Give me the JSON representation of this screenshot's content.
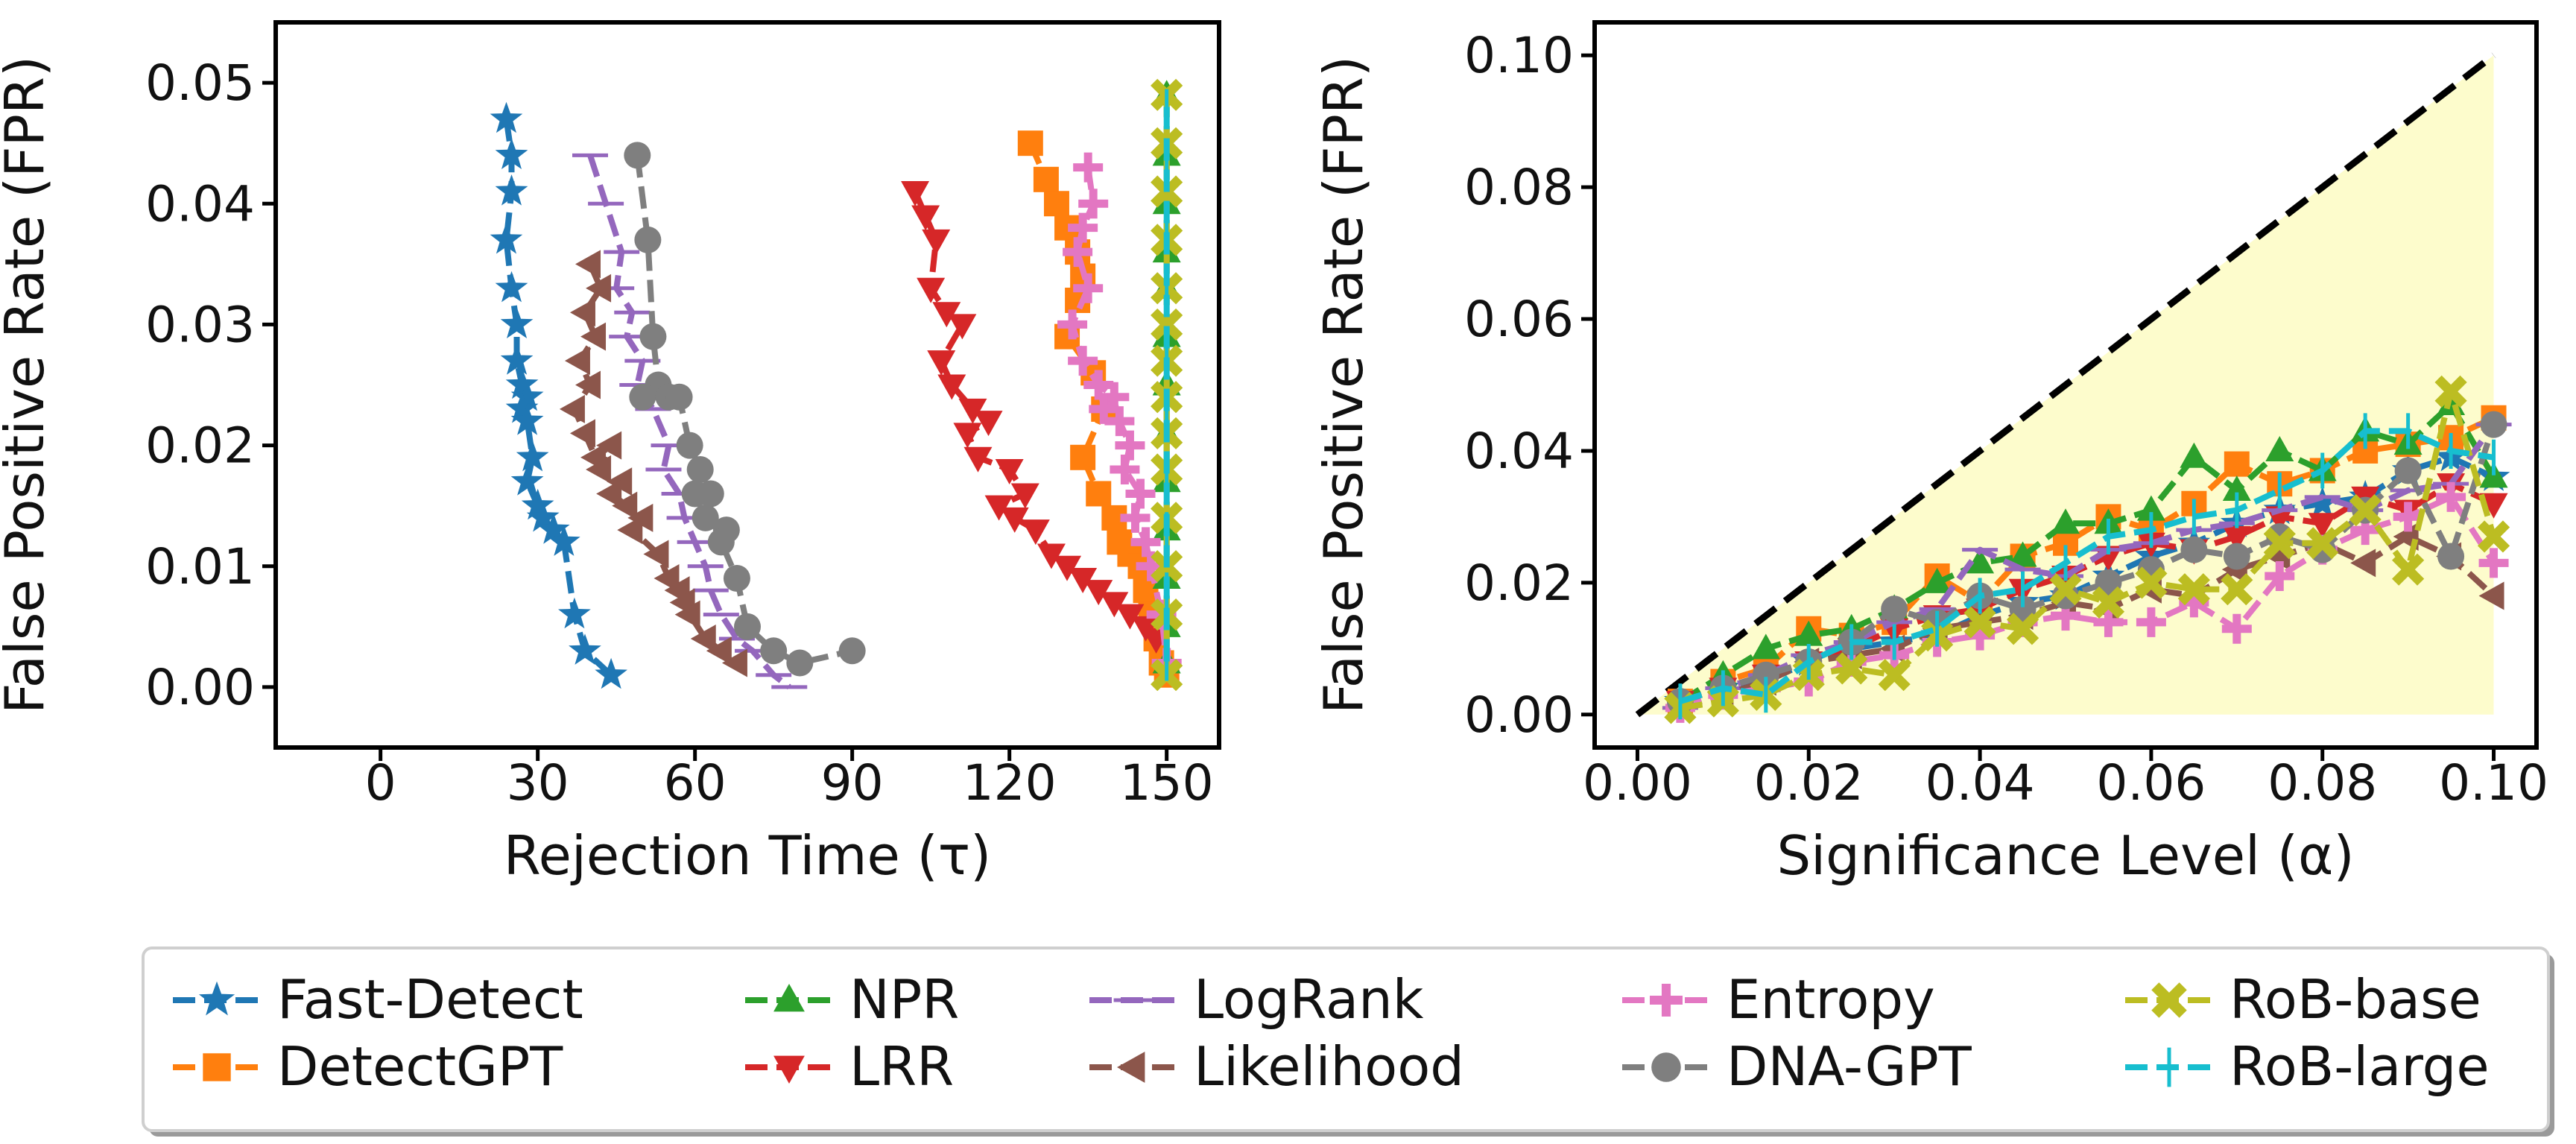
{
  "colors": {
    "Fast-Detect": "#1f77b4",
    "DetectGPT": "#ff7f0e",
    "NPR": "#2ca02c",
    "LRR": "#d62728",
    "LogRank": "#9467bd",
    "Likelihood": "#8c564b",
    "Entropy": "#e377c2",
    "DNA-GPT": "#7f7f7f",
    "RoB-base": "#bcbd22",
    "RoB-large": "#17becf",
    "region": "#fdfccc",
    "diagonal": "#000000"
  },
  "legend": {
    "entries": [
      {
        "name": "Fast-Detect",
        "marker": "star"
      },
      {
        "name": "DetectGPT",
        "marker": "square"
      },
      {
        "name": "NPR",
        "marker": "triangle-up"
      },
      {
        "name": "LRR",
        "marker": "triangle-down"
      },
      {
        "name": "LogRank",
        "marker": "hline"
      },
      {
        "name": "Likelihood",
        "marker": "triangle-left"
      },
      {
        "name": "Entropy",
        "marker": "plus"
      },
      {
        "name": "DNA-GPT",
        "marker": "circle"
      },
      {
        "name": "RoB-base",
        "marker": "x"
      },
      {
        "name": "RoB-large",
        "marker": "vline"
      }
    ]
  },
  "chart_data": [
    {
      "type": "line",
      "xlabel": "Rejection Time (τ)",
      "ylabel": "False Positive Rate (FPR)",
      "xlim": [
        -20,
        160
      ],
      "ylim": [
        -0.005,
        0.055
      ],
      "xticks": [
        0,
        30,
        60,
        90,
        120,
        150
      ],
      "xtick_labels": [
        "0",
        "30",
        "60",
        "90",
        "120",
        "150"
      ],
      "yticks": [
        0.0,
        0.01,
        0.02,
        0.03,
        0.04,
        0.05
      ],
      "ytick_labels": [
        "0.00",
        "0.01",
        "0.02",
        "0.03",
        "0.04",
        "0.05"
      ],
      "series": [
        {
          "name": "Fast-Detect",
          "x": [
            24,
            25,
            25,
            24,
            25,
            26,
            26,
            27,
            28,
            27,
            28,
            29,
            28,
            30,
            31,
            33,
            35,
            37,
            39,
            44
          ],
          "y": [
            0.047,
            0.044,
            0.041,
            0.037,
            0.033,
            0.03,
            0.027,
            0.025,
            0.024,
            0.023,
            0.022,
            0.019,
            0.017,
            0.015,
            0.014,
            0.013,
            0.012,
            0.006,
            0.003,
            0.001
          ]
        },
        {
          "name": "DetectGPT",
          "x": [
            124,
            127,
            129,
            131,
            133,
            134,
            133,
            131,
            136,
            138,
            134,
            137,
            140,
            141,
            143,
            145,
            146,
            147,
            148,
            149,
            150
          ],
          "y": [
            0.045,
            0.042,
            0.04,
            0.038,
            0.036,
            0.034,
            0.032,
            0.029,
            0.026,
            0.023,
            0.019,
            0.016,
            0.014,
            0.012,
            0.011,
            0.01,
            0.008,
            0.006,
            0.004,
            0.002,
            0.001
          ]
        },
        {
          "name": "NPR",
          "x": [
            150,
            150,
            150,
            150,
            150,
            150,
            150,
            150,
            150,
            150,
            150,
            150,
            150
          ],
          "y": [
            0.049,
            0.044,
            0.04,
            0.036,
            0.033,
            0.029,
            0.025,
            0.021,
            0.017,
            0.013,
            0.009,
            0.005,
            0.002
          ]
        },
        {
          "name": "LRR",
          "x": [
            102,
            104,
            106,
            105,
            108,
            111,
            107,
            109,
            113,
            116,
            112,
            114,
            120,
            123,
            118,
            121,
            125,
            128,
            131,
            134,
            137,
            140,
            143,
            146,
            148
          ],
          "y": [
            0.041,
            0.039,
            0.037,
            0.033,
            0.031,
            0.03,
            0.027,
            0.025,
            0.023,
            0.022,
            0.021,
            0.019,
            0.018,
            0.016,
            0.015,
            0.014,
            0.013,
            0.011,
            0.01,
            0.009,
            0.008,
            0.007,
            0.006,
            0.005,
            0.004
          ]
        },
        {
          "name": "LogRank",
          "x": [
            40,
            43,
            46,
            45,
            48,
            47,
            50,
            49,
            52,
            55,
            54,
            57,
            58,
            60,
            62,
            63,
            65,
            68,
            71,
            75,
            78
          ],
          "y": [
            0.044,
            0.04,
            0.036,
            0.033,
            0.031,
            0.029,
            0.027,
            0.025,
            0.023,
            0.02,
            0.018,
            0.016,
            0.014,
            0.012,
            0.01,
            0.008,
            0.006,
            0.004,
            0.003,
            0.001,
            0.0
          ]
        },
        {
          "name": "Likelihood",
          "x": [
            40,
            42,
            39,
            41,
            38,
            40,
            37,
            39,
            41,
            44,
            42,
            46,
            44,
            47,
            50,
            48,
            53,
            55,
            57,
            58,
            59,
            62,
            65,
            68
          ],
          "y": [
            0.035,
            0.033,
            0.031,
            0.029,
            0.027,
            0.025,
            0.023,
            0.021,
            0.019,
            0.02,
            0.018,
            0.017,
            0.016,
            0.015,
            0.014,
            0.013,
            0.011,
            0.009,
            0.008,
            0.007,
            0.006,
            0.004,
            0.003,
            0.002
          ]
        },
        {
          "name": "Entropy",
          "x": [
            135,
            136,
            134,
            133,
            135,
            132,
            134,
            137,
            140,
            138,
            141,
            143,
            142,
            145,
            144,
            146,
            147,
            149,
            150
          ],
          "y": [
            0.043,
            0.04,
            0.038,
            0.036,
            0.033,
            0.03,
            0.027,
            0.025,
            0.024,
            0.023,
            0.022,
            0.02,
            0.018,
            0.016,
            0.014,
            0.012,
            0.01,
            0.006,
            0.002
          ]
        },
        {
          "name": "DNA-GPT",
          "x": [
            49,
            51,
            52,
            53,
            50,
            55,
            57,
            59,
            61,
            60,
            63,
            62,
            66,
            65,
            68,
            70,
            75,
            80,
            90
          ],
          "y": [
            0.044,
            0.037,
            0.029,
            0.025,
            0.024,
            0.024,
            0.024,
            0.02,
            0.018,
            0.016,
            0.016,
            0.014,
            0.013,
            0.012,
            0.009,
            0.005,
            0.003,
            0.002,
            0.003
          ]
        },
        {
          "name": "RoB-base",
          "x": [
            150,
            150,
            150,
            150,
            150,
            150,
            150,
            150,
            150,
            150,
            150,
            150,
            150,
            150
          ],
          "y": [
            0.049,
            0.045,
            0.041,
            0.037,
            0.033,
            0.03,
            0.027,
            0.024,
            0.021,
            0.018,
            0.014,
            0.01,
            0.006,
            0.001
          ]
        },
        {
          "name": "RoB-large",
          "x": [
            150,
            150,
            150,
            150,
            150,
            150,
            150,
            150,
            150,
            150
          ],
          "y": [
            0.048,
            0.043,
            0.038,
            0.033,
            0.028,
            0.023,
            0.018,
            0.013,
            0.008,
            0.002
          ]
        }
      ]
    },
    {
      "type": "line",
      "xlabel": "Significance Level (α)",
      "ylabel": "False Positive Rate (FPR)",
      "xlim": [
        -0.005,
        0.105
      ],
      "ylim": [
        -0.005,
        0.105
      ],
      "xticks": [
        0.0,
        0.02,
        0.04,
        0.06,
        0.08,
        0.1
      ],
      "xtick_labels": [
        "0.00",
        "0.02",
        "0.04",
        "0.06",
        "0.08",
        "0.10"
      ],
      "yticks": [
        0.0,
        0.02,
        0.04,
        0.06,
        0.08,
        0.1
      ],
      "ytick_labels": [
        "0.00",
        "0.02",
        "0.04",
        "0.06",
        "0.08",
        "0.10"
      ],
      "reference_line": {
        "x": [
          0,
          0.1
        ],
        "y": [
          0,
          0.1
        ]
      },
      "shaded_region": {
        "x": [
          0,
          0.1,
          0.1
        ],
        "y": [
          0,
          0.1,
          0
        ]
      },
      "x": [
        0.005,
        0.01,
        0.015,
        0.02,
        0.025,
        0.03,
        0.035,
        0.04,
        0.045,
        0.05,
        0.055,
        0.06,
        0.065,
        0.07,
        0.075,
        0.08,
        0.085,
        0.09,
        0.095,
        0.1
      ],
      "series": [
        {
          "name": "Fast-Detect",
          "y": [
            0.002,
            0.004,
            0.005,
            0.008,
            0.01,
            0.011,
            0.012,
            0.015,
            0.017,
            0.018,
            0.021,
            0.024,
            0.026,
            0.029,
            0.031,
            0.032,
            0.033,
            0.037,
            0.039,
            0.036
          ]
        },
        {
          "name": "DetectGPT",
          "y": [
            0.002,
            0.005,
            0.007,
            0.013,
            0.012,
            0.014,
            0.021,
            0.017,
            0.024,
            0.026,
            0.03,
            0.028,
            0.032,
            0.038,
            0.035,
            0.037,
            0.04,
            0.041,
            0.042,
            0.045
          ]
        },
        {
          "name": "NPR",
          "y": [
            0.002,
            0.006,
            0.01,
            0.012,
            0.013,
            0.016,
            0.02,
            0.023,
            0.024,
            0.029,
            0.029,
            0.031,
            0.039,
            0.034,
            0.04,
            0.037,
            0.043,
            0.041,
            0.047,
            0.036
          ]
        },
        {
          "name": "LRR",
          "y": [
            0.002,
            0.004,
            0.006,
            0.008,
            0.01,
            0.013,
            0.015,
            0.016,
            0.019,
            0.021,
            0.024,
            0.026,
            0.025,
            0.027,
            0.03,
            0.029,
            0.033,
            0.031,
            0.035,
            0.032
          ]
        },
        {
          "name": "LogRank",
          "y": [
            0.001,
            0.004,
            0.006,
            0.009,
            0.011,
            0.014,
            0.016,
            0.025,
            0.022,
            0.021,
            0.025,
            0.026,
            0.028,
            0.029,
            0.031,
            0.033,
            0.031,
            0.034,
            0.035,
            0.044
          ]
        },
        {
          "name": "Likelihood",
          "y": [
            0.001,
            0.003,
            0.005,
            0.008,
            0.009,
            0.01,
            0.013,
            0.014,
            0.015,
            0.017,
            0.016,
            0.019,
            0.018,
            0.022,
            0.024,
            0.026,
            0.023,
            0.027,
            0.024,
            0.018
          ]
        },
        {
          "name": "Entropy",
          "y": [
            0.001,
            0.003,
            0.004,
            0.005,
            0.008,
            0.009,
            0.011,
            0.012,
            0.014,
            0.015,
            0.014,
            0.014,
            0.017,
            0.013,
            0.021,
            0.025,
            0.028,
            0.03,
            0.033,
            0.023
          ]
        },
        {
          "name": "DNA-GPT",
          "y": [
            0.002,
            0.004,
            0.006,
            0.008,
            0.011,
            0.016,
            0.014,
            0.018,
            0.016,
            0.018,
            0.02,
            0.022,
            0.025,
            0.024,
            0.027,
            0.025,
            0.031,
            0.037,
            0.024,
            0.044
          ]
        },
        {
          "name": "RoB-base",
          "y": [
            0.001,
            0.002,
            0.003,
            0.006,
            0.007,
            0.006,
            0.012,
            0.014,
            0.013,
            0.019,
            0.017,
            0.02,
            0.019,
            0.019,
            0.026,
            0.026,
            0.031,
            0.022,
            0.049,
            0.027
          ]
        },
        {
          "name": "RoB-large",
          "y": [
            0.002,
            0.004,
            0.003,
            0.008,
            0.011,
            0.011,
            0.013,
            0.018,
            0.019,
            0.023,
            0.027,
            0.028,
            0.03,
            0.031,
            0.034,
            0.037,
            0.043,
            0.043,
            0.04,
            0.039
          ]
        }
      ]
    }
  ]
}
